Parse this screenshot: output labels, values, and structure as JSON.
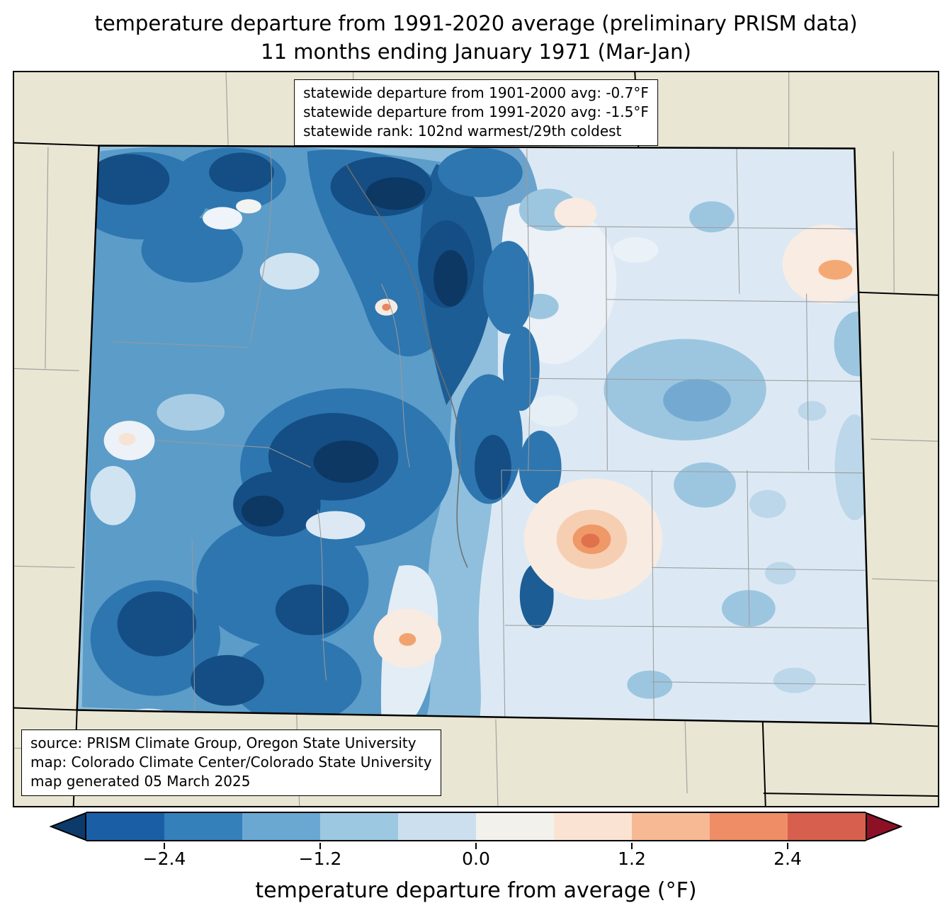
{
  "title": {
    "line1": "temperature departure from 1991-2020 average (preliminary PRISM data)",
    "line2": "11 months ending January 1971 (Mar-Jan)"
  },
  "stats_box": {
    "line1": "statewide departure from 1901-2000 avg: -0.7°F",
    "line2": "statewide departure from 1991-2020 avg: -1.5°F",
    "line3": "statewide rank: 102nd warmest/29th coldest"
  },
  "source_box": {
    "line1": "source: PRISM Climate Group, Oregon State University",
    "line2": "map: Colorado Climate Center/Colorado State University",
    "line3": "map generated 05 March 2025"
  },
  "colorbar": {
    "label": "temperature departure from average (°F)",
    "ticks": [
      "−2.4",
      "−1.2",
      "0.0",
      "1.2",
      "2.4"
    ],
    "tick_positions_pct": [
      10,
      30,
      50,
      70,
      90
    ],
    "segments": [
      "#1a5fa6",
      "#3480bb",
      "#6aa8d2",
      "#9cc8e2",
      "#cbdfee",
      "#f2f1ec",
      "#fbe3d3",
      "#f7b993",
      "#ee8d66",
      "#d6604d"
    ],
    "extend_under": "#0b3a6b",
    "extend_over": "#8c1127",
    "range": [
      -3.0,
      3.0
    ],
    "step": 0.6
  },
  "chart_data": {
    "type": "heatmap",
    "title": "temperature departure from 1991-2020 average (preliminary PRISM data)",
    "subtitle": "11 months ending January 1971 (Mar-Jan)",
    "region": "Colorado",
    "units": "°F",
    "colorbar_label": "temperature departure from average (°F)",
    "colorbar_ticks": [
      -2.4,
      -1.2,
      0.0,
      1.2,
      2.4
    ],
    "colorbar_range": [
      -3.0,
      3.0
    ],
    "statewide_departure_from_1901_2000_avg_F": -0.7,
    "statewide_departure_from_1991_2020_avg_F": -1.5,
    "statewide_rank": "102nd warmest/29th coldest",
    "pattern_summary": "strong cold anomalies (-2 to -3 °F) over western/mountain Colorado, weak cold to near-zero anomalies over eastern plains, isolated warm spots (+0.6 to +1.2 °F) east of the mountains",
    "source": "PRISM Climate Group, Oregon State University",
    "map_credit": "Colorado Climate Center/Colorado State University",
    "generated": "05 March 2025"
  }
}
